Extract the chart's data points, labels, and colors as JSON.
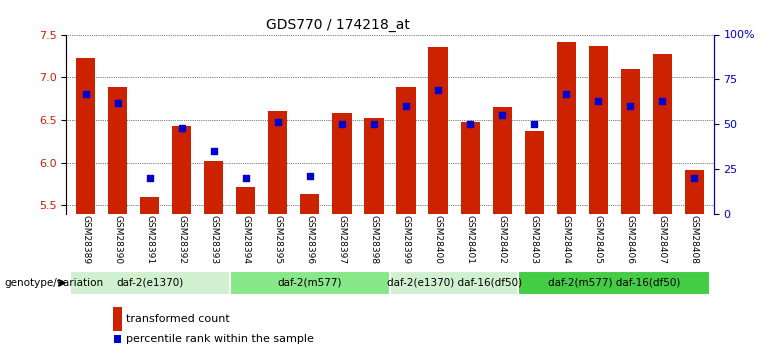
{
  "title": "GDS770 / 174218_at",
  "samples": [
    "GSM28389",
    "GSM28390",
    "GSM28391",
    "GSM28392",
    "GSM28393",
    "GSM28394",
    "GSM28395",
    "GSM28396",
    "GSM28397",
    "GSM28398",
    "GSM28399",
    "GSM28400",
    "GSM28401",
    "GSM28402",
    "GSM28403",
    "GSM28404",
    "GSM28405",
    "GSM28406",
    "GSM28407",
    "GSM28408"
  ],
  "bar_values": [
    7.22,
    6.88,
    5.6,
    6.43,
    6.02,
    5.72,
    6.61,
    5.63,
    6.58,
    6.52,
    6.88,
    7.35,
    6.47,
    6.65,
    6.37,
    7.41,
    7.36,
    7.1,
    7.27,
    5.91
  ],
  "dot_values": [
    67,
    62,
    20,
    48,
    35,
    20,
    51,
    21,
    50,
    50,
    60,
    69,
    50,
    55,
    50,
    67,
    63,
    60,
    63,
    20
  ],
  "ylim_left": [
    5.4,
    7.5
  ],
  "ylim_right": [
    0,
    100
  ],
  "bar_color": "#cc2200",
  "dot_color": "#0000cc",
  "groups": [
    {
      "label": "daf-2(e1370)",
      "start": 0,
      "end": 5,
      "color": "#d0f0d0"
    },
    {
      "label": "daf-2(m577)",
      "start": 5,
      "end": 10,
      "color": "#88e888"
    },
    {
      "label": "daf-2(e1370) daf-16(df50)",
      "start": 10,
      "end": 14,
      "color": "#d0f0d0"
    },
    {
      "label": "daf-2(m577) daf-16(df50)",
      "start": 14,
      "end": 20,
      "color": "#44cc44"
    }
  ],
  "legend_items": [
    "transformed count",
    "percentile rank within the sample"
  ],
  "genotype_label": "genotype/variation",
  "grid_yticks_left": [
    5.5,
    6.0,
    6.5,
    7.0,
    7.5
  ],
  "grid_yticks_right": [
    0,
    25,
    50,
    75,
    100
  ],
  "background_color": "#ffffff",
  "tick_label_bg": "#d0d0d0"
}
